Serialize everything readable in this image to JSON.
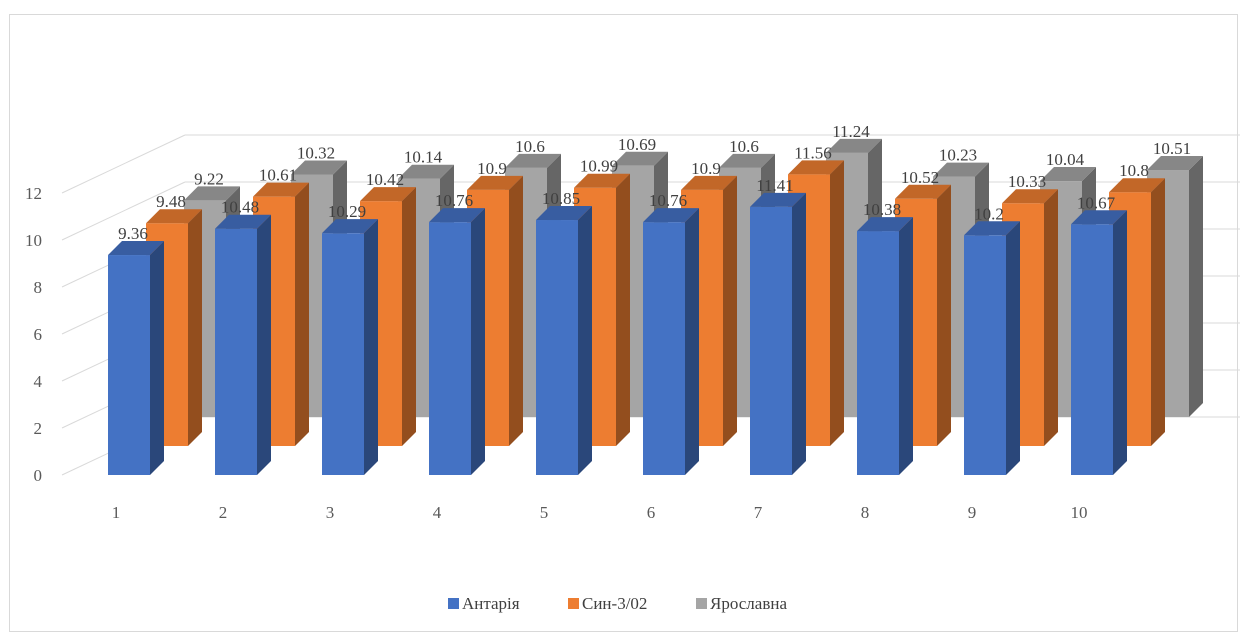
{
  "chart_data": {
    "type": "bar",
    "subtype": "3d-clustered-column",
    "categories": [
      "1",
      "2",
      "3",
      "4",
      "5",
      "6",
      "7",
      "8",
      "9",
      "10"
    ],
    "series": [
      {
        "name": "Антарія",
        "color": "#4472c4",
        "values": [
          9.36,
          10.48,
          10.29,
          10.76,
          10.85,
          10.76,
          11.41,
          10.38,
          10.2,
          10.67
        ]
      },
      {
        "name": "Син-3/02",
        "color": "#ed7d31",
        "values": [
          9.48,
          10.61,
          10.42,
          10.9,
          10.99,
          10.9,
          11.56,
          10.52,
          10.33,
          10.8
        ]
      },
      {
        "name": "Ярославна",
        "color": "#a5a5a5",
        "values": [
          9.22,
          10.32,
          10.14,
          10.6,
          10.69,
          10.6,
          11.24,
          10.23,
          10.04,
          10.51
        ]
      }
    ],
    "yticks": [
      "0",
      "2",
      "4",
      "6",
      "8",
      "10",
      "12"
    ],
    "ylim": [
      0,
      12
    ],
    "grid": true,
    "legend": "bottom",
    "data_labels": true
  }
}
